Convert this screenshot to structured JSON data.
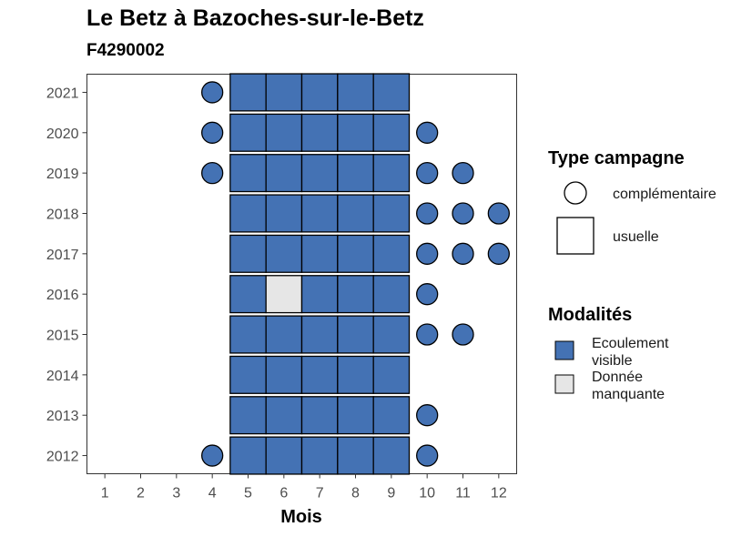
{
  "chart_data": {
    "type": "scatter",
    "title": "Le Betz à Bazoches-sur-le-Betz",
    "subtitle": "F4290002",
    "xlabel": "Mois",
    "ylabel": "",
    "x_ticks": [
      1,
      2,
      3,
      4,
      5,
      6,
      7,
      8,
      9,
      10,
      11,
      12
    ],
    "y_ticks": [
      2012,
      2013,
      2014,
      2015,
      2016,
      2017,
      2018,
      2019,
      2020,
      2021
    ],
    "xlim": [
      0.5,
      12.5
    ],
    "ylim": [
      2011.55,
      2021.45
    ],
    "grid": false,
    "legend_position": "right",
    "legend": {
      "type_title": "Type campagne",
      "type_entries": [
        {
          "key": "complementaire",
          "label": "complémentaire",
          "shape": "circle"
        },
        {
          "key": "usuelle",
          "label": "usuelle",
          "shape": "square"
        }
      ],
      "mod_title": "Modalités",
      "mod_entries": [
        {
          "key": "ecoulement_visible",
          "label_lines": [
            "Ecoulement",
            "visible"
          ],
          "color": "#4472B4"
        },
        {
          "key": "donnee_manquante",
          "label_lines": [
            "Donnée",
            "manquante"
          ],
          "color": "#E6E6E6"
        }
      ]
    },
    "colors": {
      "ecoulement_visible": "#4472B4",
      "donnee_manquante": "#E6E6E6"
    },
    "points": [
      {
        "year": 2021,
        "month": 4,
        "type": "complementaire",
        "modalite": "ecoulement_visible"
      },
      {
        "year": 2021,
        "month": 5,
        "type": "usuelle",
        "modalite": "ecoulement_visible"
      },
      {
        "year": 2021,
        "month": 6,
        "type": "usuelle",
        "modalite": "ecoulement_visible"
      },
      {
        "year": 2021,
        "month": 7,
        "type": "usuelle",
        "modalite": "ecoulement_visible"
      },
      {
        "year": 2021,
        "month": 8,
        "type": "usuelle",
        "modalite": "ecoulement_visible"
      },
      {
        "year": 2021,
        "month": 9,
        "type": "usuelle",
        "modalite": "ecoulement_visible"
      },
      {
        "year": 2020,
        "month": 4,
        "type": "complementaire",
        "modalite": "ecoulement_visible"
      },
      {
        "year": 2020,
        "month": 5,
        "type": "usuelle",
        "modalite": "ecoulement_visible"
      },
      {
        "year": 2020,
        "month": 6,
        "type": "usuelle",
        "modalite": "ecoulement_visible"
      },
      {
        "year": 2020,
        "month": 7,
        "type": "usuelle",
        "modalite": "ecoulement_visible"
      },
      {
        "year": 2020,
        "month": 8,
        "type": "usuelle",
        "modalite": "ecoulement_visible"
      },
      {
        "year": 2020,
        "month": 9,
        "type": "usuelle",
        "modalite": "ecoulement_visible"
      },
      {
        "year": 2020,
        "month": 10,
        "type": "complementaire",
        "modalite": "ecoulement_visible"
      },
      {
        "year": 2019,
        "month": 4,
        "type": "complementaire",
        "modalite": "ecoulement_visible"
      },
      {
        "year": 2019,
        "month": 5,
        "type": "usuelle",
        "modalite": "ecoulement_visible"
      },
      {
        "year": 2019,
        "month": 6,
        "type": "usuelle",
        "modalite": "ecoulement_visible"
      },
      {
        "year": 2019,
        "month": 7,
        "type": "usuelle",
        "modalite": "ecoulement_visible"
      },
      {
        "year": 2019,
        "month": 8,
        "type": "usuelle",
        "modalite": "ecoulement_visible"
      },
      {
        "year": 2019,
        "month": 9,
        "type": "usuelle",
        "modalite": "ecoulement_visible"
      },
      {
        "year": 2019,
        "month": 10,
        "type": "complementaire",
        "modalite": "ecoulement_visible"
      },
      {
        "year": 2019,
        "month": 11,
        "type": "complementaire",
        "modalite": "ecoulement_visible"
      },
      {
        "year": 2018,
        "month": 5,
        "type": "usuelle",
        "modalite": "ecoulement_visible"
      },
      {
        "year": 2018,
        "month": 6,
        "type": "usuelle",
        "modalite": "ecoulement_visible"
      },
      {
        "year": 2018,
        "month": 7,
        "type": "usuelle",
        "modalite": "ecoulement_visible"
      },
      {
        "year": 2018,
        "month": 8,
        "type": "usuelle",
        "modalite": "ecoulement_visible"
      },
      {
        "year": 2018,
        "month": 9,
        "type": "usuelle",
        "modalite": "ecoulement_visible"
      },
      {
        "year": 2018,
        "month": 10,
        "type": "complementaire",
        "modalite": "ecoulement_visible"
      },
      {
        "year": 2018,
        "month": 11,
        "type": "complementaire",
        "modalite": "ecoulement_visible"
      },
      {
        "year": 2018,
        "month": 12,
        "type": "complementaire",
        "modalite": "ecoulement_visible"
      },
      {
        "year": 2017,
        "month": 5,
        "type": "usuelle",
        "modalite": "ecoulement_visible"
      },
      {
        "year": 2017,
        "month": 6,
        "type": "usuelle",
        "modalite": "ecoulement_visible"
      },
      {
        "year": 2017,
        "month": 7,
        "type": "usuelle",
        "modalite": "ecoulement_visible"
      },
      {
        "year": 2017,
        "month": 8,
        "type": "usuelle",
        "modalite": "ecoulement_visible"
      },
      {
        "year": 2017,
        "month": 9,
        "type": "usuelle",
        "modalite": "ecoulement_visible"
      },
      {
        "year": 2017,
        "month": 10,
        "type": "complementaire",
        "modalite": "ecoulement_visible"
      },
      {
        "year": 2017,
        "month": 11,
        "type": "complementaire",
        "modalite": "ecoulement_visible"
      },
      {
        "year": 2017,
        "month": 12,
        "type": "complementaire",
        "modalite": "ecoulement_visible"
      },
      {
        "year": 2016,
        "month": 5,
        "type": "usuelle",
        "modalite": "ecoulement_visible"
      },
      {
        "year": 2016,
        "month": 6,
        "type": "usuelle",
        "modalite": "donnee_manquante"
      },
      {
        "year": 2016,
        "month": 7,
        "type": "usuelle",
        "modalite": "ecoulement_visible"
      },
      {
        "year": 2016,
        "month": 8,
        "type": "usuelle",
        "modalite": "ecoulement_visible"
      },
      {
        "year": 2016,
        "month": 9,
        "type": "usuelle",
        "modalite": "ecoulement_visible"
      },
      {
        "year": 2016,
        "month": 10,
        "type": "complementaire",
        "modalite": "ecoulement_visible"
      },
      {
        "year": 2015,
        "month": 5,
        "type": "usuelle",
        "modalite": "ecoulement_visible"
      },
      {
        "year": 2015,
        "month": 6,
        "type": "usuelle",
        "modalite": "ecoulement_visible"
      },
      {
        "year": 2015,
        "month": 7,
        "type": "usuelle",
        "modalite": "ecoulement_visible"
      },
      {
        "year": 2015,
        "month": 8,
        "type": "usuelle",
        "modalite": "ecoulement_visible"
      },
      {
        "year": 2015,
        "month": 9,
        "type": "usuelle",
        "modalite": "ecoulement_visible"
      },
      {
        "year": 2015,
        "month": 10,
        "type": "complementaire",
        "modalite": "ecoulement_visible"
      },
      {
        "year": 2015,
        "month": 11,
        "type": "complementaire",
        "modalite": "ecoulement_visible"
      },
      {
        "year": 2014,
        "month": 5,
        "type": "usuelle",
        "modalite": "ecoulement_visible"
      },
      {
        "year": 2014,
        "month": 6,
        "type": "usuelle",
        "modalite": "ecoulement_visible"
      },
      {
        "year": 2014,
        "month": 7,
        "type": "usuelle",
        "modalite": "ecoulement_visible"
      },
      {
        "year": 2014,
        "month": 8,
        "type": "usuelle",
        "modalite": "ecoulement_visible"
      },
      {
        "year": 2014,
        "month": 9,
        "type": "usuelle",
        "modalite": "ecoulement_visible"
      },
      {
        "year": 2013,
        "month": 5,
        "type": "usuelle",
        "modalite": "ecoulement_visible"
      },
      {
        "year": 2013,
        "month": 6,
        "type": "usuelle",
        "modalite": "ecoulement_visible"
      },
      {
        "year": 2013,
        "month": 7,
        "type": "usuelle",
        "modalite": "ecoulement_visible"
      },
      {
        "year": 2013,
        "month": 8,
        "type": "usuelle",
        "modalite": "ecoulement_visible"
      },
      {
        "year": 2013,
        "month": 9,
        "type": "usuelle",
        "modalite": "ecoulement_visible"
      },
      {
        "year": 2013,
        "month": 10,
        "type": "complementaire",
        "modalite": "ecoulement_visible"
      },
      {
        "year": 2012,
        "month": 4,
        "type": "complementaire",
        "modalite": "ecoulement_visible"
      },
      {
        "year": 2012,
        "month": 5,
        "type": "usuelle",
        "modalite": "ecoulement_visible"
      },
      {
        "year": 2012,
        "month": 6,
        "type": "usuelle",
        "modalite": "ecoulement_visible"
      },
      {
        "year": 2012,
        "month": 7,
        "type": "usuelle",
        "modalite": "ecoulement_visible"
      },
      {
        "year": 2012,
        "month": 8,
        "type": "usuelle",
        "modalite": "ecoulement_visible"
      },
      {
        "year": 2012,
        "month": 9,
        "type": "usuelle",
        "modalite": "ecoulement_visible"
      },
      {
        "year": 2012,
        "month": 10,
        "type": "complementaire",
        "modalite": "ecoulement_visible"
      }
    ]
  }
}
